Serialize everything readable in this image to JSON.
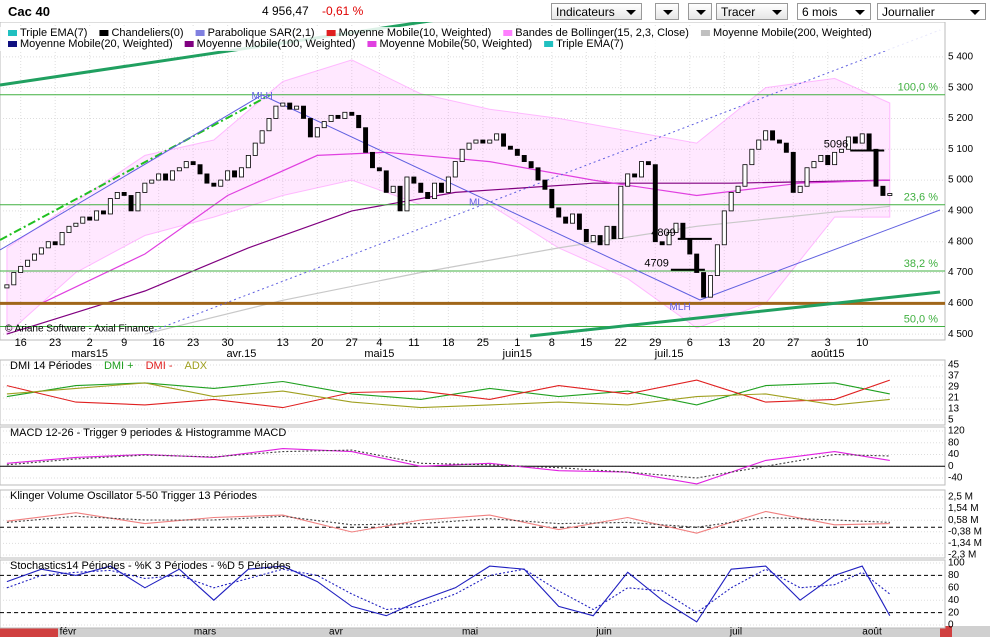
{
  "toolbar": {
    "symbol": "Cac 40",
    "last": "4 956,47",
    "change": "-0,61 %",
    "indicators": "Indicateurs",
    "draw": "Tracer",
    "period": "6 mois",
    "interval": "Journalier"
  },
  "navigator": {
    "months": [
      "févr",
      "mars",
      "avr",
      "mai",
      "juin",
      "juil",
      "août"
    ]
  },
  "chart_data": [
    {
      "type": "candlestick",
      "credit": "© Ariane Software - Axial Finance",
      "up_color": "#ffffff",
      "down_color": "#000000",
      "grid": true,
      "xlim": [
        -1,
        136
      ],
      "ylim": [
        4481,
        5513
      ],
      "yticks": [
        {
          "value": 4500,
          "label": "4 500"
        },
        {
          "value": 4600,
          "label": "4 600"
        },
        {
          "value": 4700,
          "label": "4 700"
        },
        {
          "value": 4800,
          "label": "4 800"
        },
        {
          "value": 4900,
          "label": "4 900"
        },
        {
          "value": 5000,
          "label": "5 000"
        },
        {
          "value": 5100,
          "label": "5 100"
        },
        {
          "value": 5200,
          "label": "5 200"
        },
        {
          "value": 5300,
          "label": "5 300"
        },
        {
          "value": 5400,
          "label": "5 400"
        }
      ],
      "xticks": [
        {
          "value": 2,
          "label": "16"
        },
        {
          "value": 7,
          "label": "23"
        },
        {
          "value": 12,
          "label": "2"
        },
        {
          "value": 17,
          "label": "9"
        },
        {
          "value": 22,
          "label": "16"
        },
        {
          "value": 27,
          "label": "23"
        },
        {
          "value": 32,
          "label": "30"
        },
        {
          "value": 40,
          "label": "13"
        },
        {
          "value": 45,
          "label": "20"
        },
        {
          "value": 50,
          "label": "27"
        },
        {
          "value": 54,
          "label": "4"
        },
        {
          "value": 59,
          "label": "11"
        },
        {
          "value": 64,
          "label": "18"
        },
        {
          "value": 69,
          "label": "25"
        },
        {
          "value": 74,
          "label": "1"
        },
        {
          "value": 79,
          "label": "8"
        },
        {
          "value": 84,
          "label": "15"
        },
        {
          "value": 89,
          "label": "22"
        },
        {
          "value": 94,
          "label": "29"
        },
        {
          "value": 99,
          "label": "6"
        },
        {
          "value": 104,
          "label": "13"
        },
        {
          "value": 109,
          "label": "20"
        },
        {
          "value": 114,
          "label": "27"
        },
        {
          "value": 119,
          "label": "3"
        },
        {
          "value": 124,
          "label": "10"
        }
      ],
      "month_ticks": [
        {
          "value": 12,
          "label": "mars15"
        },
        {
          "value": 34,
          "label": "avr.15"
        },
        {
          "value": 54,
          "label": "mai15"
        },
        {
          "value": 74,
          "label": "juin15"
        },
        {
          "value": 96,
          "label": "juil.15"
        },
        {
          "value": 119,
          "label": "août15"
        }
      ],
      "legend": [
        {
          "name": "Triple EMA(7)",
          "color": "#20c0c0"
        },
        {
          "name": "Chandeliers(0)",
          "color": "#000000"
        },
        {
          "name": "Parabolique SAR(2,1)",
          "color": "#8080e0"
        },
        {
          "name": "Moyenne Mobile(10, Weighted)",
          "color": "#e02020"
        },
        {
          "name": "Bandes de Bollinger(15, 2,3, Close)",
          "color": "#ff80ff"
        },
        {
          "name": "Moyenne Mobile(200, Weighted)",
          "color": "#c0c0c0"
        },
        {
          "name": "Moyenne Mobile(20, Weighted)",
          "color": "#101080"
        },
        {
          "name": "Moyenne Mobile(100, Weighted)",
          "color": "#800080"
        },
        {
          "name": "Moyenne Mobile(50, Weighted)",
          "color": "#e040e0"
        },
        {
          "name": "Triple EMA(7)",
          "color": "#20c0c0"
        }
      ],
      "open": [
        4650,
        4660,
        4700,
        4720,
        4740,
        4760,
        4780,
        4800,
        4790,
        4830,
        4850,
        4860,
        4880,
        4870,
        4900,
        4890,
        4940,
        4960,
        4950,
        4900,
        4960,
        4990,
        5000,
        5020,
        5000,
        5030,
        5040,
        5060,
        5050,
        5020,
        4990,
        4980,
        5000,
        5030,
        5010,
        5040,
        5080,
        5120,
        5160,
        5200,
        5240,
        5250,
        5230,
        5240,
        5200,
        5140,
        5170,
        5190,
        5210,
        5200,
        5220,
        5210,
        5170,
        5090,
        5040,
        5030,
        4960,
        4980,
        4900,
        5010,
        4990,
        4960,
        4940,
        4990,
        4960,
        5010,
        5060,
        5100,
        5120,
        5130,
        5120,
        5130,
        5150,
        5110,
        5100,
        5080,
        5060,
        5040,
        5000,
        4970,
        4910,
        4880,
        4860,
        4890,
        4840,
        4800,
        4820,
        4790,
        4850,
        4810,
        4980,
        5020,
        5010,
        5060,
        5050,
        4800,
        4790,
        4830,
        4860,
        4810,
        4760,
        4700,
        4620,
        4690,
        4790,
        4900,
        4960,
        4980,
        5050,
        5100,
        5130,
        5160,
        5130,
        5120,
        5090,
        4960,
        4980,
        5040,
        5060,
        5080,
        5050,
        5090,
        5100,
        5140,
        5120,
        5150,
        5100,
        4980,
        4950
      ],
      "close": [
        4660,
        4700,
        4720,
        4740,
        4760,
        4780,
        4800,
        4790,
        4830,
        4850,
        4860,
        4880,
        4870,
        4900,
        4890,
        4940,
        4960,
        4950,
        4900,
        4960,
        4990,
        5000,
        5020,
        5000,
        5030,
        5040,
        5060,
        5050,
        5020,
        4990,
        4980,
        5000,
        5030,
        5010,
        5040,
        5080,
        5120,
        5160,
        5200,
        5240,
        5250,
        5230,
        5240,
        5200,
        5140,
        5170,
        5190,
        5210,
        5200,
        5220,
        5210,
        5170,
        5090,
        5040,
        5030,
        4960,
        4980,
        4900,
        5010,
        4990,
        4960,
        4940,
        4990,
        4960,
        5010,
        5060,
        5100,
        5120,
        5130,
        5120,
        5130,
        5150,
        5110,
        5100,
        5080,
        5060,
        5040,
        5000,
        4970,
        4910,
        4880,
        4860,
        4890,
        4840,
        4800,
        4820,
        4790,
        4850,
        4810,
        4980,
        5020,
        5010,
        5060,
        5050,
        4800,
        4790,
        4830,
        4860,
        4810,
        4760,
        4700,
        4620,
        4690,
        4790,
        4900,
        4960,
        4980,
        5050,
        5100,
        5130,
        5160,
        5130,
        5120,
        5090,
        4960,
        4980,
        5040,
        5060,
        5080,
        5050,
        5090,
        5100,
        5140,
        5120,
        5150,
        5100,
        4980,
        4950,
        4956.47
      ],
      "band": {
        "color": "#ff80ff",
        "x": [
          0,
          10,
          20,
          30,
          40,
          50,
          60,
          70,
          80,
          90,
          100,
          110,
          120,
          128
        ],
        "upper": [
          4780,
          4930,
          5080,
          5130,
          5320,
          5390,
          5280,
          5230,
          5200,
          5160,
          5120,
          5300,
          5330,
          5250
        ],
        "lower": [
          4500,
          4700,
          4820,
          4880,
          4950,
          5000,
          4920,
          4920,
          4780,
          4680,
          4520,
          4600,
          4880,
          4880
        ]
      },
      "overlays": [
        {
          "color": "#c8c8c8",
          "x": [
            20,
            40,
            60,
            80,
            100,
            128
          ],
          "values": [
            4500,
            4610,
            4700,
            4780,
            4850,
            4915
          ]
        },
        {
          "color": "#800080",
          "x": [
            0,
            20,
            35,
            50,
            65,
            85,
            105,
            128
          ],
          "values": [
            4500,
            4640,
            4780,
            4900,
            4960,
            4990,
            4990,
            5000
          ]
        },
        {
          "color": "#e040e0",
          "x": [
            5,
            20,
            32,
            45,
            55,
            70,
            85,
            100,
            115,
            128
          ],
          "values": [
            4600,
            4760,
            4950,
            5080,
            5090,
            5060,
            5000,
            4950,
            4990,
            5000
          ]
        }
      ],
      "levels": [
        {
          "value": 5277,
          "label": "100,0 %",
          "color": "#40b040"
        },
        {
          "value": 4920,
          "label": "23,6 %",
          "color": "#40b040"
        },
        {
          "value": 4705,
          "label": "38,2 %",
          "color": "#40b040"
        },
        {
          "value": 4525,
          "label": "50,0 %",
          "color": "#40b040"
        }
      ],
      "support": {
        "value": 4600,
        "color": "#a0661a"
      },
      "price_labels": [
        {
          "x": 99,
          "value": 4809
        },
        {
          "x": 98,
          "value": 4709
        },
        {
          "x": 124,
          "value": 5096
        }
      ],
      "text_labels": [
        {
          "x": 37,
          "y": 5271,
          "text": "MLH"
        },
        {
          "x": 68,
          "y": 4926,
          "text": "ML"
        },
        {
          "x": 97.6,
          "y": 4587,
          "text": "MLH"
        }
      ]
    },
    {
      "type": "line",
      "title": "DMI 14 Périodes",
      "xlim": [
        -1,
        136
      ],
      "ylim": [
        1.4,
        48.6
      ],
      "yticks": [
        5,
        13,
        21,
        29,
        37,
        45
      ],
      "series": [
        {
          "name": "DMI +",
          "color": "#20a020",
          "x": [
            0,
            10,
            20,
            30,
            40,
            50,
            60,
            70,
            80,
            90,
            100,
            110,
            120,
            128
          ],
          "values": [
            22,
            30,
            32,
            28,
            33,
            24,
            20,
            28,
            22,
            26,
            16,
            30,
            32,
            24
          ]
        },
        {
          "name": "DMI -",
          "color": "#e02020",
          "x": [
            0,
            10,
            20,
            30,
            40,
            50,
            60,
            70,
            80,
            90,
            100,
            110,
            120,
            128
          ],
          "values": [
            30,
            18,
            16,
            20,
            14,
            25,
            26,
            20,
            30,
            24,
            34,
            18,
            20,
            34
          ]
        },
        {
          "name": "ADX",
          "color": "#a0a020",
          "x": [
            0,
            10,
            20,
            30,
            40,
            50,
            60,
            70,
            80,
            90,
            100,
            110,
            120,
            128
          ],
          "values": [
            24,
            28,
            32,
            22,
            26,
            18,
            14,
            16,
            18,
            16,
            22,
            24,
            16,
            20
          ]
        }
      ]
    },
    {
      "type": "line",
      "title": "MACD 12-26 - Trigger 9 periodes & Histogramme MACD",
      "xlim": [
        -1,
        136
      ],
      "ylim": [
        -63.8,
        133.6
      ],
      "yticks": [
        -40,
        0,
        40,
        80,
        120
      ],
      "levels": [
        0
      ],
      "series": [
        {
          "color": "#e020e0",
          "x": [
            0,
            10,
            20,
            30,
            40,
            50,
            60,
            70,
            80,
            90,
            100,
            110,
            120,
            128
          ],
          "values": [
            10,
            30,
            40,
            30,
            60,
            50,
            0,
            10,
            -15,
            -20,
            -60,
            20,
            50,
            20
          ]
        },
        {
          "color": "#404040",
          "dash": true,
          "x": [
            0,
            10,
            20,
            30,
            40,
            50,
            60,
            70,
            80,
            90,
            100,
            110,
            120,
            128
          ],
          "values": [
            5,
            25,
            38,
            32,
            50,
            55,
            10,
            5,
            -5,
            -20,
            -40,
            0,
            40,
            35
          ]
        }
      ]
    },
    {
      "type": "line",
      "title": "Klinger Volume Oscillator 5-50   Trigger 13 Périodes",
      "xlim": [
        -1,
        136
      ],
      "ylim": [
        -2.55,
        3.08
      ],
      "yticks": [
        {
          "value": -2.3,
          "label": "-2,3 M"
        },
        {
          "value": -1.34,
          "label": "-1,34 M"
        },
        {
          "value": -0.38,
          "label": "-0,38 M"
        },
        {
          "value": 0.58,
          "label": "0,58 M"
        },
        {
          "value": 1.54,
          "label": "1,54 M"
        },
        {
          "value": 2.5,
          "label": "2,5 M"
        }
      ],
      "levels": [
        0
      ],
      "series": [
        {
          "color": "#f08080",
          "x": [
            0,
            10,
            20,
            30,
            40,
            50,
            60,
            70,
            80,
            90,
            100,
            110,
            120,
            128
          ],
          "values": [
            0.5,
            1.2,
            0.3,
            0.8,
            1.0,
            -0.4,
            0.6,
            1.0,
            -0.2,
            0.8,
            -0.5,
            1.3,
            0.2,
            0.3
          ]
        },
        {
          "color": "#404040",
          "dash": true,
          "x": [
            0,
            10,
            20,
            30,
            40,
            50,
            60,
            70,
            80,
            90,
            100,
            110,
            120,
            128
          ],
          "values": [
            0.4,
            0.9,
            0.6,
            0.6,
            0.9,
            0.2,
            0.3,
            0.7,
            0.3,
            0.4,
            0.0,
            0.8,
            0.6,
            0.4
          ]
        }
      ]
    },
    {
      "type": "line",
      "title": "Stochastics14 Périodes  -  %K 3 Périodes  -  %D 5 Périodes",
      "xlim": [
        -1,
        136
      ],
      "ylim": [
        -4.8,
        104.8
      ],
      "yticks": [
        0,
        20,
        40,
        60,
        80,
        100
      ],
      "levels": [
        20,
        80
      ],
      "series": [
        {
          "color": "#2020c0",
          "x": [
            0,
            5,
            10,
            15,
            20,
            25,
            30,
            35,
            40,
            45,
            50,
            55,
            60,
            65,
            70,
            75,
            80,
            85,
            90,
            95,
            100,
            105,
            110,
            115,
            120,
            124,
            128
          ],
          "values": [
            70,
            90,
            80,
            95,
            60,
            90,
            40,
            90,
            95,
            70,
            30,
            15,
            40,
            60,
            95,
            90,
            30,
            15,
            85,
            40,
            5,
            90,
            95,
            40,
            80,
            95,
            15
          ]
        },
        {
          "color": "#2020c0",
          "dash": true,
          "x": [
            0,
            5,
            10,
            15,
            20,
            25,
            30,
            35,
            40,
            45,
            50,
            55,
            60,
            65,
            70,
            75,
            80,
            85,
            90,
            95,
            100,
            105,
            110,
            115,
            120,
            124,
            128
          ],
          "values": [
            60,
            80,
            85,
            88,
            75,
            80,
            60,
            75,
            90,
            80,
            50,
            25,
            30,
            50,
            80,
            90,
            55,
            25,
            60,
            55,
            20,
            60,
            90,
            60,
            65,
            85,
            50
          ]
        }
      ]
    }
  ]
}
